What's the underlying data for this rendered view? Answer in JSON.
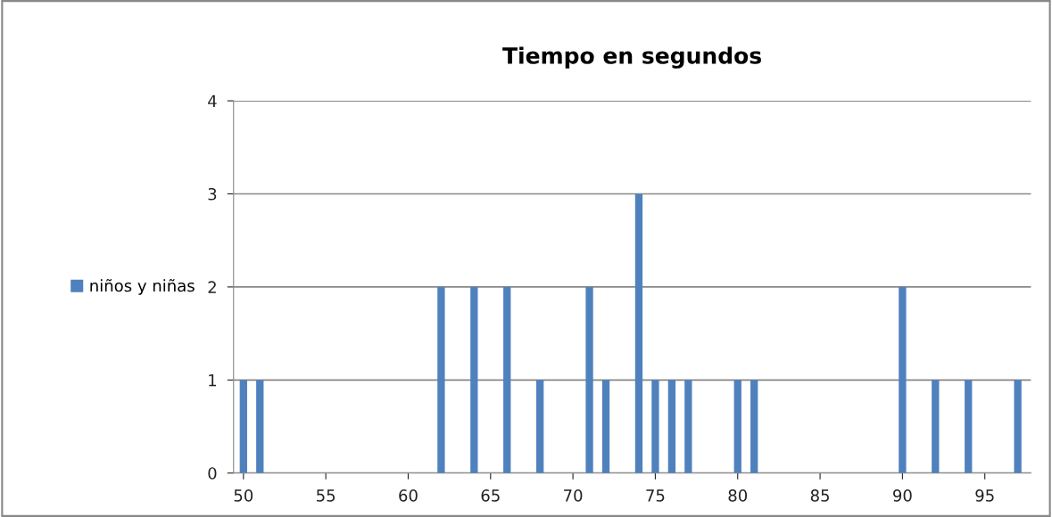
{
  "chart_data": {
    "type": "bar",
    "title": "Tiempo en segundos",
    "x": [
      50,
      51,
      62,
      64,
      66,
      68,
      71,
      72,
      74,
      75,
      76,
      77,
      80,
      81,
      90,
      92,
      94,
      97
    ],
    "series": [
      {
        "name": "niños y niñas",
        "color": "#4f81bd",
        "values": [
          1,
          1,
          2,
          2,
          2,
          1,
          2,
          1,
          3,
          1,
          1,
          1,
          1,
          1,
          2,
          1,
          1,
          1
        ]
      }
    ],
    "xlim": [
      49.4,
      97.8
    ],
    "xticks": [
      50,
      55,
      60,
      65,
      70,
      75,
      80,
      85,
      90,
      95
    ],
    "ylim": [
      0,
      4
    ],
    "yticks": [
      0,
      1,
      2,
      3,
      4
    ],
    "grid": "y",
    "legend": "left"
  }
}
